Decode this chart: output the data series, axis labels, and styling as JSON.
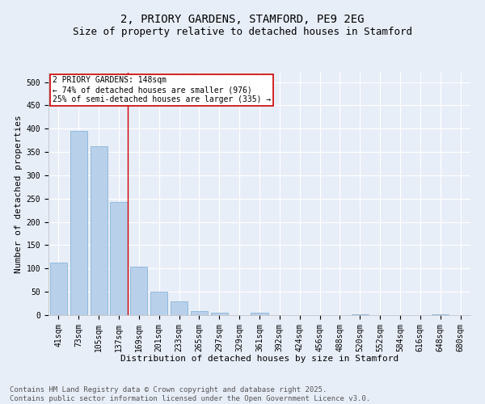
{
  "title1": "2, PRIORY GARDENS, STAMFORD, PE9 2EG",
  "title2": "Size of property relative to detached houses in Stamford",
  "xlabel": "Distribution of detached houses by size in Stamford",
  "ylabel": "Number of detached properties",
  "categories": [
    "41sqm",
    "73sqm",
    "105sqm",
    "137sqm",
    "169sqm",
    "201sqm",
    "233sqm",
    "265sqm",
    "297sqm",
    "329sqm",
    "361sqm",
    "392sqm",
    "424sqm",
    "456sqm",
    "488sqm",
    "520sqm",
    "552sqm",
    "584sqm",
    "616sqm",
    "648sqm",
    "680sqm"
  ],
  "values": [
    112,
    396,
    362,
    243,
    104,
    50,
    30,
    8,
    5,
    0,
    6,
    0,
    0,
    0,
    0,
    1,
    0,
    0,
    0,
    1,
    0
  ],
  "bar_color": "#b8d0ea",
  "bar_edge_color": "#7aadd4",
  "vline_color": "#cc0000",
  "annotation_text": "2 PRIORY GARDENS: 148sqm\n← 74% of detached houses are smaller (976)\n25% of semi-detached houses are larger (335) →",
  "annotation_box_color": "#ffffff",
  "annotation_box_edge": "#cc0000",
  "ylim": [
    0,
    520
  ],
  "yticks": [
    0,
    50,
    100,
    150,
    200,
    250,
    300,
    350,
    400,
    450,
    500
  ],
  "background_color": "#e8eef8",
  "grid_color": "#ffffff",
  "footer": "Contains HM Land Registry data © Crown copyright and database right 2025.\nContains public sector information licensed under the Open Government Licence v3.0.",
  "title_fontsize": 10,
  "subtitle_fontsize": 9,
  "axis_label_fontsize": 8,
  "tick_fontsize": 7,
  "footer_fontsize": 6.5
}
